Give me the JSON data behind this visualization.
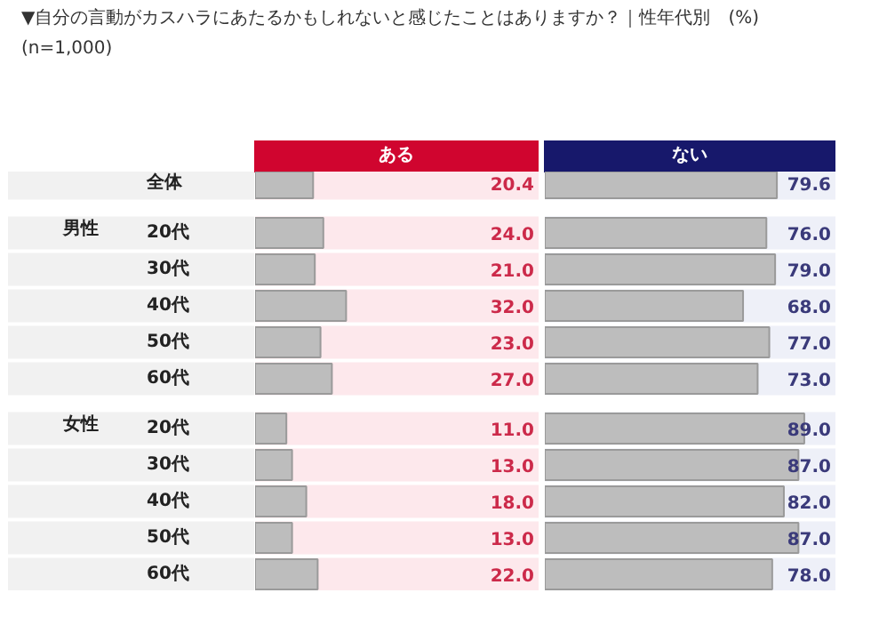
{
  "chart_data": [
    {
      "type": "bar",
      "orientation": "horizontal",
      "title": "▼自分の言動がカスハラにあたるかもしれないと感じたことはありますか？｜性年代別　(%)",
      "subtitle": "(n=1,000)",
      "categories": [
        "全体",
        null,
        "20代",
        "30代",
        "40代",
        "50代",
        "60代",
        null,
        "20代",
        "30代",
        "40代",
        "50代",
        "60代"
      ],
      "annotations": [
        "男性",
        "女性"
      ],
      "xlim": [
        0,
        100
      ],
      "series": [
        {
          "name": "ある",
          "color": "#bdbdbd",
          "values": [
            20.4,
            null,
            24,
            21,
            32,
            23,
            27,
            null,
            11,
            13,
            18,
            13,
            22
          ],
          "value_labels": [
            "20.4",
            null,
            "24.0",
            "21.0",
            "32.0",
            "23.0",
            "27.0",
            null,
            "11.0",
            "13.0",
            "18.0",
            "13.0",
            "22.0"
          ]
        }
      ]
    },
    {
      "type": "bar",
      "orientation": "horizontal",
      "categories": [
        null,
        null,
        null,
        null,
        null,
        null,
        null,
        null,
        null,
        null,
        null,
        null,
        null
      ],
      "xlim": [
        0,
        100
      ],
      "series": [
        {
          "name": "ない",
          "color": "#bdbdbd",
          "values": [
            79.6,
            null,
            76,
            79,
            68,
            77,
            73,
            null,
            89,
            87,
            82,
            87,
            78
          ],
          "value_labels": [
            "79.6",
            null,
            "76.0",
            "79.0",
            "68.0",
            "77.0",
            "73.0",
            null,
            "89.0",
            "87.0",
            "82.0",
            "87.0",
            "78.0"
          ]
        }
      ]
    }
  ]
}
